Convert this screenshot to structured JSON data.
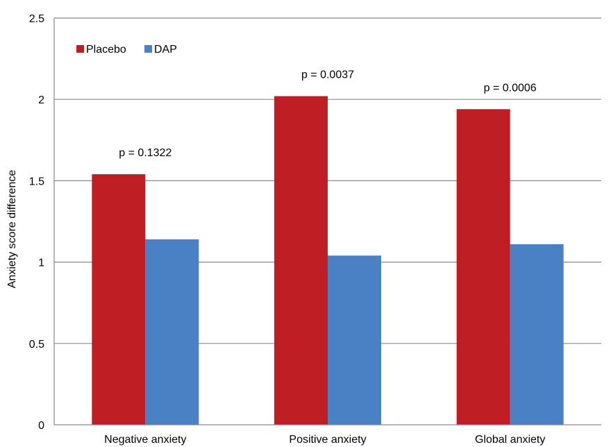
{
  "chart_data": {
    "type": "bar",
    "title": "",
    "xlabel": "",
    "ylabel": "Anxiety score difference",
    "ylim": [
      0,
      2.5
    ],
    "yticks": [
      0,
      0.5,
      1,
      1.5,
      2,
      2.5
    ],
    "ytick_labels": [
      "0",
      "0.5",
      "1",
      "1.5",
      "2",
      "2.5"
    ],
    "grid": true,
    "legend_position": "top-left",
    "categories": [
      "Negative anxiety",
      "Positive anxiety",
      "Global anxiety"
    ],
    "series": [
      {
        "name": "Placebo",
        "color": "#BE1E23",
        "values": [
          1.54,
          2.02,
          1.94
        ]
      },
      {
        "name": "DAP",
        "color": "#4A80C4",
        "values": [
          1.14,
          1.04,
          1.11
        ]
      }
    ],
    "annotations": [
      {
        "category": "Negative anxiety",
        "text": "p = 0.1322"
      },
      {
        "category": "Positive anxiety",
        "text": "p = 0.0037"
      },
      {
        "category": "Global anxiety",
        "text": "p = 0.0006"
      }
    ]
  }
}
